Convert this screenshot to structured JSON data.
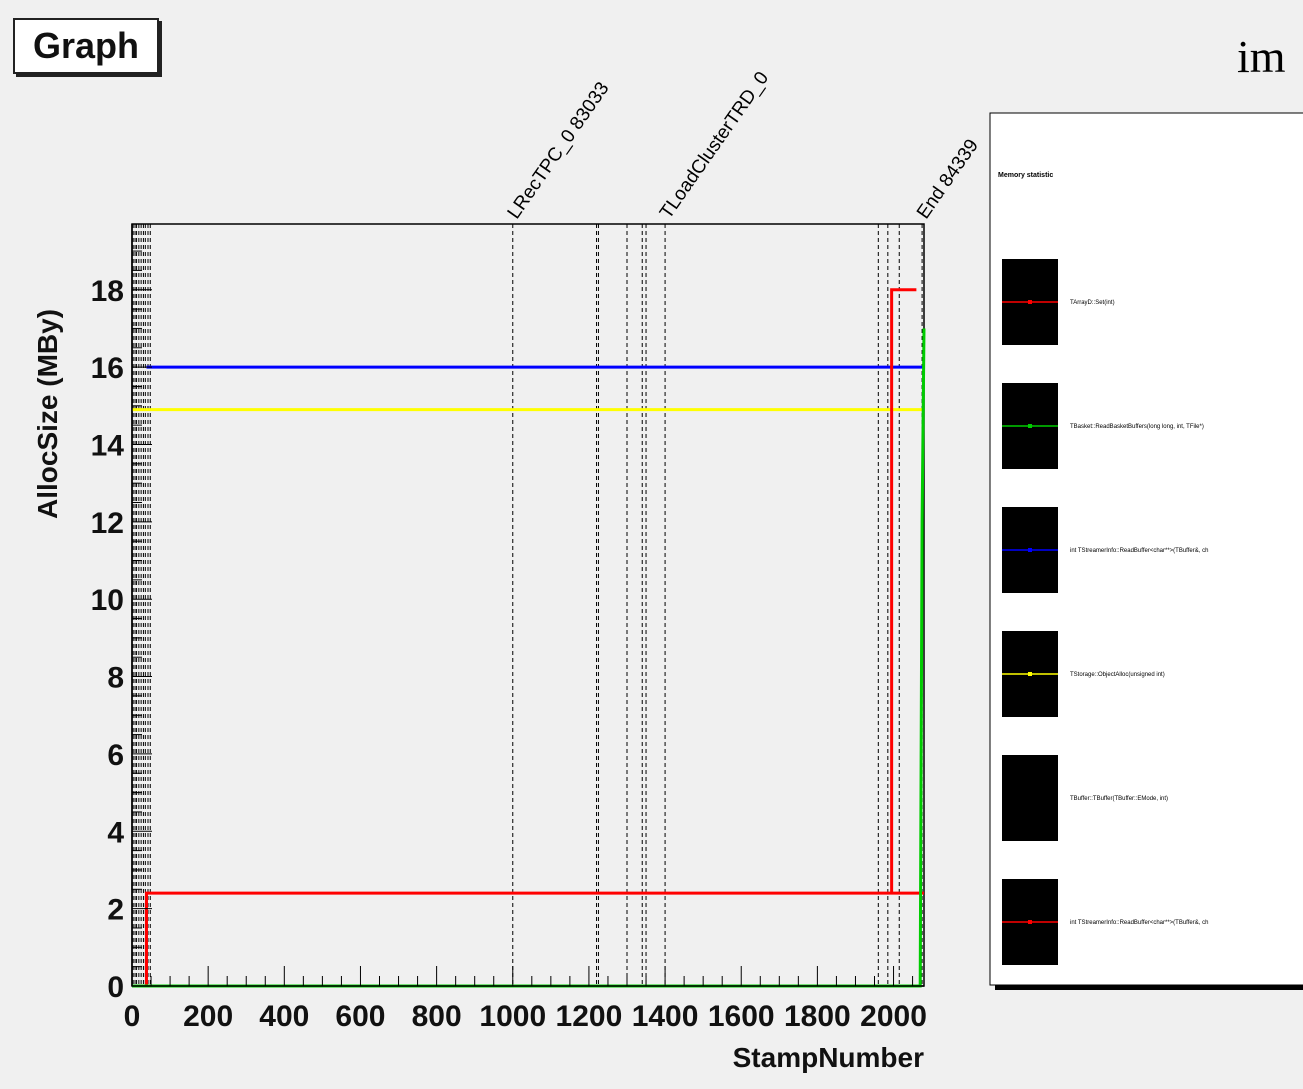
{
  "page_title": "Graph",
  "corner_text": "im",
  "colors": {
    "background": "#f0f0f0",
    "red": "#ff0000",
    "blue": "#0000ff",
    "yellow": "#ffff00",
    "green": "#00cc00",
    "black": "#000000"
  },
  "chart_data": {
    "type": "line",
    "title": "Graph",
    "xlabel": "StampNumber",
    "ylabel": "AllocSize (MBy)",
    "xlim": [
      0,
      2080
    ],
    "ylim": [
      0,
      19.7
    ],
    "grid": false,
    "xticks": [
      0,
      200,
      400,
      600,
      800,
      1000,
      1200,
      1400,
      1600,
      1800,
      2000
    ],
    "yticks": [
      0,
      2,
      4,
      6,
      8,
      10,
      12,
      14,
      16,
      18
    ],
    "series": [
      {
        "name": "",
        "color": "#ff0000",
        "x": [
          0,
          38,
          38,
          2080
        ],
        "y": [
          0,
          0,
          2.4,
          2.4
        ]
      },
      {
        "name": "",
        "color": "#0000ff",
        "x": [
          38,
          2080
        ],
        "y": [
          16,
          16
        ]
      },
      {
        "name": "",
        "color": "#ffff00",
        "x": [
          0,
          2080
        ],
        "y": [
          14.9,
          14.9
        ]
      },
      {
        "name": "",
        "color": "#ff0000",
        "x": [
          1995,
          1995,
          2060
        ],
        "y": [
          2.4,
          18,
          18
        ]
      },
      {
        "name": "",
        "color": "#00cc00",
        "x": [
          0,
          2070,
          2075,
          2080
        ],
        "y": [
          0,
          0,
          12,
          17
        ]
      }
    ],
    "markers": [
      {
        "x": 1000,
        "label": "LRecTPC_0  83033"
      },
      {
        "x": 1220,
        "label": ""
      },
      {
        "x": 1225,
        "label": ""
      },
      {
        "x": 1300,
        "label": ""
      },
      {
        "x": 1340,
        "label": ""
      },
      {
        "x": 1350,
        "label": ""
      },
      {
        "x": 1400,
        "label": "TLoadClusterTRD_0"
      },
      {
        "x": 1960,
        "label": ""
      },
      {
        "x": 1985,
        "label": ""
      },
      {
        "x": 2015,
        "label": ""
      },
      {
        "x": 2075,
        "label": "End  84339"
      }
    ],
    "legend": {
      "title": "Memory statistic",
      "position": "right",
      "entries": [
        {
          "label": "TArrayD::Set(int)",
          "color": "#ff0000"
        },
        {
          "label": "TBasket::ReadBasketBuffers(long long, int, TFile*)",
          "color": "#00cc00"
        },
        {
          "label": "int TStreamerInfo::ReadBuffer<char**>(TBuffer&, ch",
          "color": "#0000ff"
        },
        {
          "label": "TStorage::ObjectAlloc(unsigned int)",
          "color": "#ffff00"
        },
        {
          "label": "TBuffer::TBuffer(TBuffer::EMode, int)",
          "color": "#000000"
        },
        {
          "label": "int TStreamerInfo::ReadBuffer<char**>(TBuffer&, ch",
          "color": "#ff0000"
        }
      ]
    }
  }
}
